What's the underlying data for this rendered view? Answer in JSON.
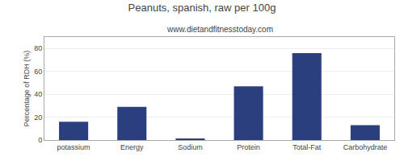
{
  "chart_data": {
    "type": "bar",
    "title": "Peanuts, spanish, raw per 100g",
    "subtitle": "www.dietandfitnesstoday.com",
    "ylabel": "Percentage of RDH (%)",
    "categories": [
      "potassium",
      "Energy",
      "Sodium",
      "Protein",
      "Total-Fat",
      "Carbohydrate"
    ],
    "values": [
      16,
      29,
      1,
      47,
      76,
      13
    ],
    "color": "#2b3f7e",
    "ylim": [
      0,
      90
    ],
    "yticks": [
      0,
      20,
      40,
      60,
      80
    ],
    "grid": true
  }
}
